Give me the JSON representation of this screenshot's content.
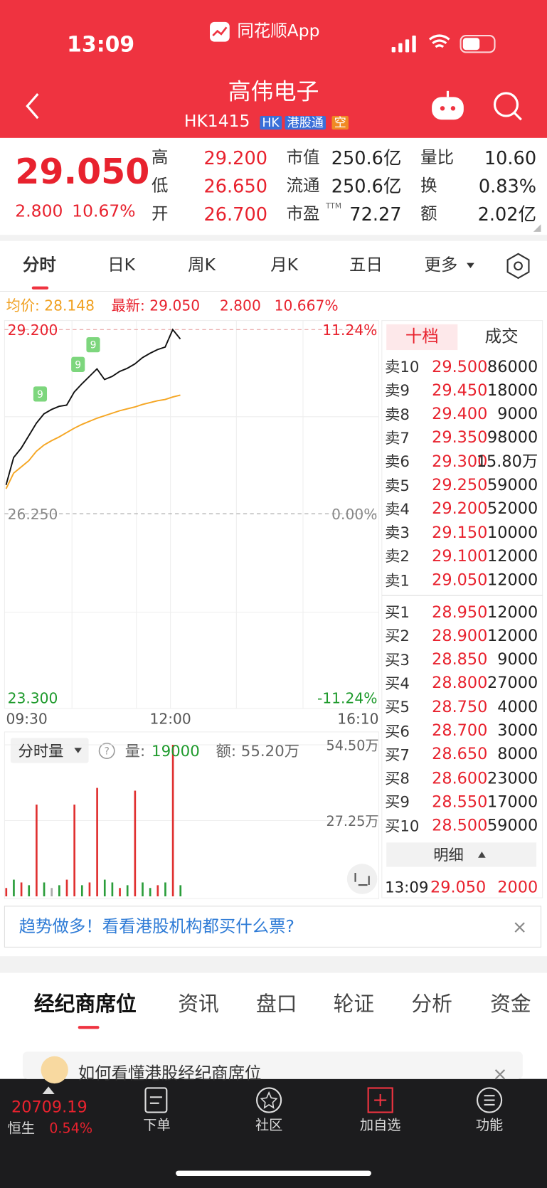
{
  "status_bar": {
    "time": "13:09",
    "app": "同花顺App"
  },
  "header": {
    "title": "高伟电子",
    "code": "HK1415",
    "tags": [
      "HK",
      "港股通",
      "空"
    ]
  },
  "quote": {
    "price": "29.050",
    "change": "2.800",
    "change_pct": "10.67%",
    "ttm": "TTM",
    "stats": [
      [
        "高",
        "29.200"
      ],
      [
        "低",
        "26.650"
      ],
      [
        "开",
        "26.700"
      ],
      [
        "市值",
        "250.6亿"
      ],
      [
        "流通",
        "250.6亿"
      ],
      [
        "市盈",
        "72.27"
      ],
      [
        "量比",
        "10.60"
      ],
      [
        "换",
        "0.83%"
      ],
      [
        "额",
        "2.02亿"
      ]
    ]
  },
  "tabs": [
    "分时",
    "日K",
    "周K",
    "月K",
    "五日",
    "更多"
  ],
  "chart_data": [
    {
      "type": "line",
      "info": {
        "avg": "均价: 28.148",
        "latest": "最新: 29.050",
        "change": "2.800",
        "change_pct": "10.667%"
      },
      "series": [
        {
          "color": "#111111",
          "values": [
            26.71,
            27.15,
            27.3,
            27.5,
            27.7,
            27.85,
            27.92,
            27.97,
            27.99,
            28.2,
            28.33,
            28.45,
            28.57,
            28.4,
            28.45,
            28.53,
            28.58,
            28.65,
            28.75,
            28.82,
            28.88,
            28.92,
            29.2,
            29.05
          ]
        },
        {
          "color": "#f5a623",
          "values": [
            26.65,
            26.9,
            27.0,
            27.1,
            27.25,
            27.35,
            27.42,
            27.48,
            27.55,
            27.62,
            27.68,
            27.73,
            27.78,
            27.82,
            27.86,
            27.9,
            27.93,
            27.96,
            28.0,
            28.03,
            28.06,
            28.08,
            28.12,
            28.15
          ]
        }
      ],
      "ylim": [
        23.3,
        29.2
      ],
      "yticks": [
        {
          "value": 29.2,
          "label": "29.200"
        },
        {
          "value": 26.25,
          "label": "26.250"
        },
        {
          "value": 23.3,
          "label": "23.300"
        }
      ],
      "y2lim": [
        -11.24,
        11.24
      ],
      "y2ticks": [
        {
          "value": 11.24,
          "label": "11.24%"
        },
        {
          "value": 0,
          "label": "0.00%"
        },
        {
          "value": -11.24,
          "label": "-11.24%"
        }
      ],
      "x_labels": [
        "09:30",
        "12:00",
        "16:10"
      ],
      "badges": [
        "9",
        "9",
        "9"
      ]
    },
    {
      "type": "bar",
      "title": "分时量",
      "vol_label": "量:",
      "vol": "19000",
      "amount": "额: 55.20万",
      "values": [
        3,
        6,
        5,
        4,
        33,
        5,
        3,
        4,
        6,
        33,
        4,
        5,
        39,
        6,
        5,
        3,
        4,
        38,
        5,
        3,
        4,
        5,
        54.5,
        4
      ],
      "colors": [
        "#e03030",
        "#2a9d3a",
        "#e03030",
        "#2a9d3a",
        "#e03030",
        "#2a9d3a",
        "#aaaaaa",
        "#2a9d3a",
        "#e03030",
        "#e03030",
        "#2a9d3a",
        "#e03030",
        "#e03030",
        "#2a9d3a",
        "#2a9d3a",
        "#e03030",
        "#2a9d3a",
        "#e03030",
        "#2a9d3a",
        "#2a9d3a",
        "#e03030",
        "#2a9d3a",
        "#e03030",
        "#2a9d3a"
      ],
      "ylim": [
        0,
        54.5
      ],
      "yticks": [
        {
          "value": 54.5,
          "label": "54.50万"
        },
        {
          "value": 27.25,
          "label": "27.25万"
        }
      ]
    }
  ],
  "order_book": {
    "tabs": [
      "十档",
      "成交"
    ],
    "asks": [
      [
        "卖10",
        "29.500",
        "86000"
      ],
      [
        "卖9",
        "29.450",
        "18000"
      ],
      [
        "卖8",
        "29.400",
        "9000"
      ],
      [
        "卖7",
        "29.350",
        "98000"
      ],
      [
        "卖6",
        "29.300",
        "15.80万"
      ],
      [
        "卖5",
        "29.250",
        "59000"
      ],
      [
        "卖4",
        "29.200",
        "52000"
      ],
      [
        "卖3",
        "29.150",
        "10000"
      ],
      [
        "卖2",
        "29.100",
        "12000"
      ],
      [
        "卖1",
        "29.050",
        "12000"
      ]
    ],
    "bids": [
      [
        "买1",
        "28.950",
        "12000"
      ],
      [
        "买2",
        "28.900",
        "12000"
      ],
      [
        "买3",
        "28.850",
        "9000"
      ],
      [
        "买4",
        "28.800",
        "27000"
      ],
      [
        "买5",
        "28.750",
        "4000"
      ],
      [
        "买6",
        "28.700",
        "3000"
      ],
      [
        "买7",
        "28.650",
        "8000"
      ],
      [
        "买8",
        "28.600",
        "23000"
      ],
      [
        "买9",
        "28.550",
        "17000"
      ],
      [
        "买10",
        "28.500",
        "59000"
      ]
    ],
    "detail": "明细",
    "trade": [
      "13:09",
      "29.050",
      "2000"
    ]
  },
  "banner": "趋势做多！看看港股机构都买什么票?",
  "sections": [
    "经纪商席位",
    "资讯",
    "盘口",
    "轮证",
    "分析",
    "资金"
  ],
  "card": "如何看懂港股经纪商席位",
  "bottom_bar": {
    "index_value": "20709.19",
    "index_name": "恒生",
    "index_pct": "0.54%",
    "buttons": [
      "下单",
      "社区",
      "加自选",
      "功能"
    ]
  }
}
